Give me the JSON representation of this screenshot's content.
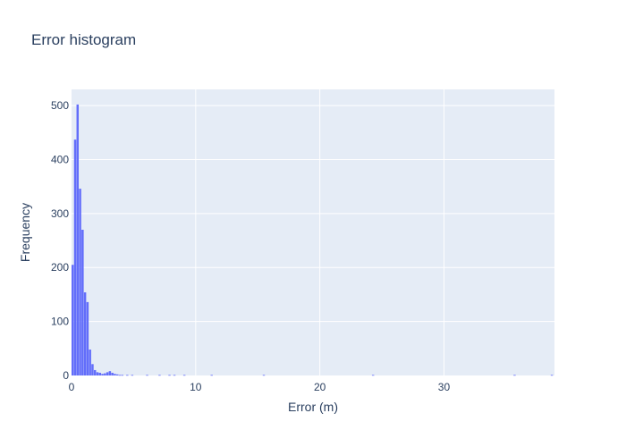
{
  "chart_data": {
    "type": "bar",
    "title": "Error histogram",
    "xlabel": "Error (m)",
    "ylabel": "Frequency",
    "xlim": [
      0,
      38.9
    ],
    "ylim": [
      0,
      530
    ],
    "x_ticks": [
      0,
      10,
      20,
      30
    ],
    "y_ticks": [
      0,
      100,
      200,
      300,
      400,
      500
    ],
    "grid": true,
    "bin_width": 0.2,
    "colors": {
      "bar": "#636efa",
      "plot_bg": "#e5ecf6",
      "grid": "#ffffff",
      "text": "#2a3f5f"
    },
    "bins": [
      {
        "x0": 0.0,
        "count": 205
      },
      {
        "x0": 0.2,
        "count": 437
      },
      {
        "x0": 0.4,
        "count": 502
      },
      {
        "x0": 0.6,
        "count": 346
      },
      {
        "x0": 0.8,
        "count": 270
      },
      {
        "x0": 1.0,
        "count": 154
      },
      {
        "x0": 1.2,
        "count": 136
      },
      {
        "x0": 1.4,
        "count": 48
      },
      {
        "x0": 1.6,
        "count": 21
      },
      {
        "x0": 1.8,
        "count": 10
      },
      {
        "x0": 2.0,
        "count": 6
      },
      {
        "x0": 2.2,
        "count": 5
      },
      {
        "x0": 2.4,
        "count": 3
      },
      {
        "x0": 2.6,
        "count": 4
      },
      {
        "x0": 2.8,
        "count": 6
      },
      {
        "x0": 3.0,
        "count": 8
      },
      {
        "x0": 3.2,
        "count": 5
      },
      {
        "x0": 3.4,
        "count": 3
      },
      {
        "x0": 3.6,
        "count": 2
      },
      {
        "x0": 3.8,
        "count": 1
      },
      {
        "x0": 4.0,
        "count": 1
      },
      {
        "x0": 4.4,
        "count": 1
      },
      {
        "x0": 4.8,
        "count": 1
      },
      {
        "x0": 6.0,
        "count": 1
      },
      {
        "x0": 7.0,
        "count": 1
      },
      {
        "x0": 7.8,
        "count": 1
      },
      {
        "x0": 8.2,
        "count": 1
      },
      {
        "x0": 9.0,
        "count": 1
      },
      {
        "x0": 11.2,
        "count": 1
      },
      {
        "x0": 15.4,
        "count": 1
      },
      {
        "x0": 24.2,
        "count": 1
      },
      {
        "x0": 35.6,
        "count": 1
      },
      {
        "x0": 38.6,
        "count": 1
      }
    ]
  }
}
